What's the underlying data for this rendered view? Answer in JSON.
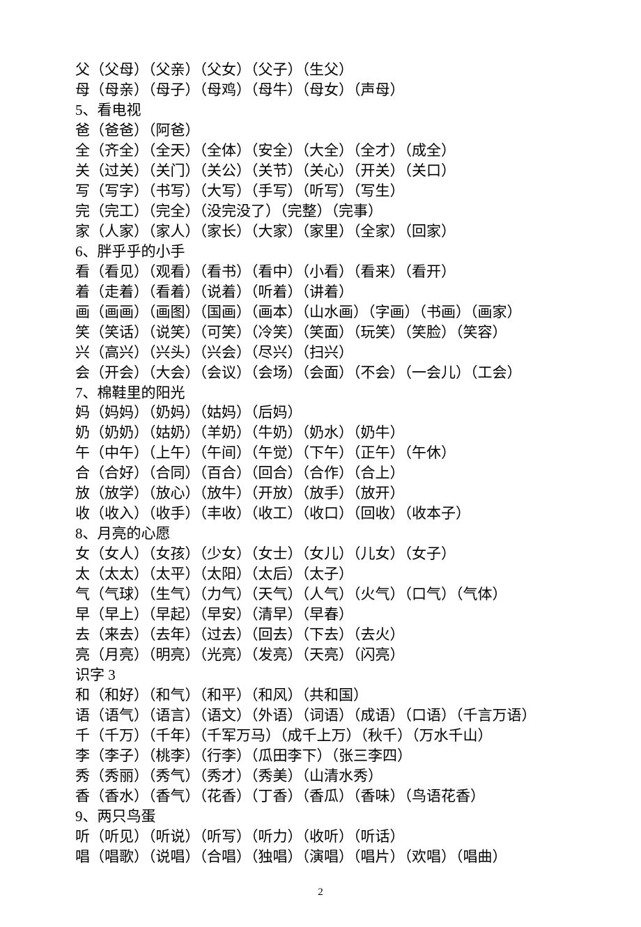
{
  "page_number": "2",
  "style": {
    "background_color": "#ffffff",
    "text_color": "#000000",
    "font_family": "SimSun",
    "font_size_pt": 16,
    "line_height": 1.38
  },
  "lines": [
    "父（父母）（父亲）（父女）（父子）（生父）",
    "母（母亲）（母子）（母鸡）（母牛）（母女）（声母）",
    "5、看电视",
    "爸（爸爸）（阿爸）",
    "全（齐全）（全天）（全体）（安全）（大全）（全才）（成全）",
    "关（过关）（关门）（关公）（关节）（关心）（开关）（关口）",
    "写（写字）（书写）（大写）（手写）（听写）（写生）",
    "完（完工）（完全）（没完没了）（完整）（完事）",
    "家（人家）（家人）（家长）（大家）（家里）（全家）（回家）",
    "6、胖乎乎的小手",
    "看（看见）（观看）（看书）（看中）（小看）（看来）（看开）",
    "着（走着）（看着）（说着）（听着）（讲着）",
    "画（画画）（画图）（国画）（画本）（山水画）（字画）（书画）（画家）",
    "笑（笑话）（说笑）（可笑）（冷笑）（笑面）（玩笑）（笑脸）（笑容）",
    "兴（高兴）（兴头）（兴会）（尽兴）（扫兴）",
    "会（开会）（大会）（会议）（会场）（会面）（不会）（一会儿）（工会）",
    "7、棉鞋里的阳光",
    "妈（妈妈）（奶妈）（姑妈）（后妈）",
    "奶（奶奶）（姑奶）（羊奶）（牛奶）（奶水）（奶牛）",
    "午（中午）（上午）（午间）（午觉）（下午）（正午）（午休）",
    "合（合好）（合同）（百合）（回合）（合作）（合上）",
    "放（放学）（放心）（放牛）（开放）（放手）（放开）",
    "收（收入）（收手）（丰收）（收工）（收口）（回收）（收本子）",
    "8、月亮的心愿",
    "女（女人）（女孩）（少女）（女士）（女儿）（儿女）（女子）",
    "太（太太）（太平）（太阳）（太后）（太子）",
    "气（气球）（生气）（力气）（天气）（人气）（火气）（口气）（气体）",
    "早（早上）（早起）（早安）（清早）（早春）",
    "去（来去）（去年）（过去）（回去）（下去）（去火）",
    "亮（月亮）（明亮）（光亮）（发亮）（天亮）（闪亮）",
    "识字 3",
    "和（和好）（和气）（和平）（和风）（共和国）",
    "语（语气）（语言）（语文）（外语）（词语）（成语）（口语）（千言万语）",
    "千（千万）（千年）（千军万马）（成千上万）（秋千）（万水千山）",
    "李（李子）（桃李）（行李）（瓜田李下）（张三李四）",
    "秀（秀丽）（秀气）（秀才）（秀美）（山清水秀）",
    "香（香水）（香气）（花香）（丁香）（香瓜）（香味）（鸟语花香）",
    "9、两只鸟蛋",
    "听（听见）（听说）（听写）（听力）（收听）（听话）",
    "唱（唱歌）（说唱）（合唱）（独唱）（演唱）（唱片）（欢唱）（唱曲）"
  ]
}
